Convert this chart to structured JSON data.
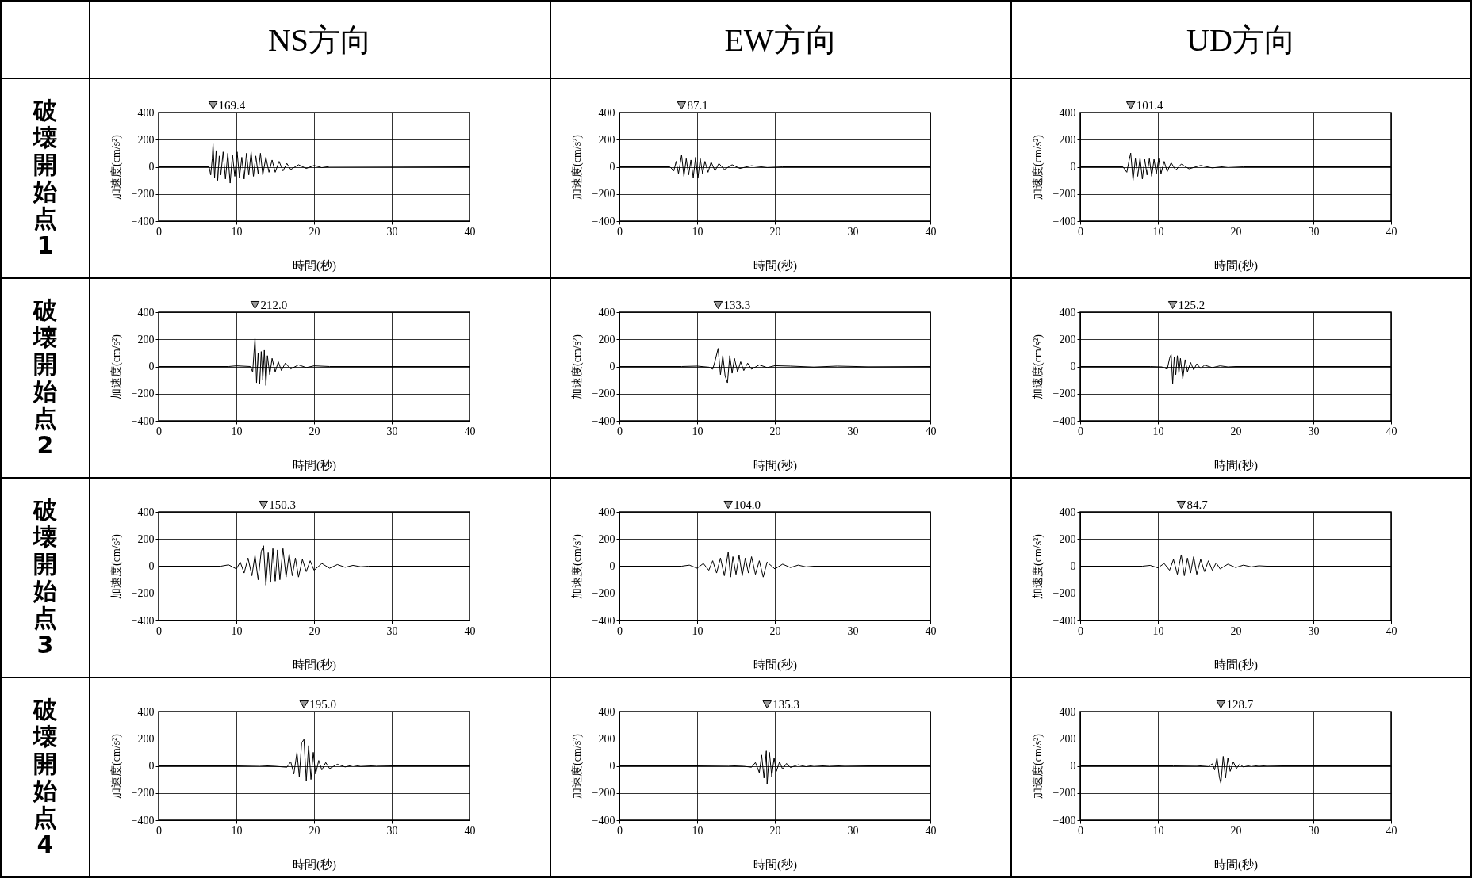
{
  "chart_data": [
    {
      "type": "other",
      "title": "NS方向"
    },
    {
      "type": "other",
      "title": "EW方向"
    },
    {
      "type": "other",
      "title": "UD方向"
    },
    {
      "type": "other",
      "title": "破壊開始点1"
    },
    {
      "type": "line",
      "color": "#000000",
      "xlabel": "時間(秒)",
      "ylabel": "加速度(cm/s²)",
      "xlim": [
        0,
        40
      ],
      "ylim": [
        -400,
        400
      ],
      "xticks": [
        0,
        10,
        20,
        30,
        40
      ],
      "yticks": [
        -400,
        -200,
        0,
        200,
        400
      ],
      "grid": true,
      "annotations": [
        "169.4"
      ],
      "x": [
        0,
        6.5,
        6.7,
        6.9,
        7.0,
        7.2,
        7.4,
        7.6,
        7.8,
        8.0,
        8.3,
        8.6,
        8.9,
        9.2,
        9.5,
        9.8,
        10.1,
        10.4,
        10.7,
        11,
        11.3,
        11.6,
        11.9,
        12.2,
        12.5,
        12.8,
        13.1,
        13.4,
        13.8,
        14.2,
        14.6,
        15,
        15.5,
        16,
        16.5,
        17,
        18,
        19,
        20,
        21,
        22,
        40
      ],
      "values": [
        0,
        0,
        -60,
        60,
        169.4,
        -80,
        120,
        -100,
        80,
        -60,
        110,
        -90,
        100,
        -120,
        90,
        -70,
        110,
        -80,
        70,
        -90,
        100,
        -60,
        110,
        -70,
        80,
        -50,
        100,
        -60,
        70,
        -40,
        50,
        -40,
        40,
        -30,
        25,
        -20,
        15,
        -12,
        10,
        -6,
        3,
        0
      ]
    },
    {
      "type": "line",
      "color": "#000000",
      "xlabel": "時間(秒)",
      "ylabel": "加速度(cm/s²)",
      "xlim": [
        0,
        40
      ],
      "ylim": [
        -400,
        400
      ],
      "xticks": [
        0,
        10,
        20,
        30,
        40
      ],
      "yticks": [
        -400,
        -200,
        0,
        200,
        400
      ],
      "grid": true,
      "annotations": [
        "87.1"
      ],
      "x": [
        0,
        6.5,
        7,
        7.3,
        7.6,
        8.0,
        8.3,
        8.6,
        8.9,
        9.2,
        9.5,
        9.8,
        10.1,
        10.4,
        10.7,
        11,
        11.4,
        11.8,
        12.3,
        12.8,
        13.5,
        14.5,
        15.5,
        17,
        19,
        21,
        40
      ],
      "values": [
        0,
        0,
        -30,
        40,
        -50,
        87.1,
        -70,
        60,
        -60,
        50,
        -80,
        70,
        -85,
        60,
        -50,
        40,
        -40,
        35,
        -30,
        25,
        -20,
        15,
        -12,
        8,
        -5,
        0,
        0
      ]
    },
    {
      "type": "line",
      "color": "#000000",
      "xlabel": "時間(秒)",
      "ylabel": "加速度(cm/s²)",
      "xlim": [
        0,
        40
      ],
      "ylim": [
        -400,
        400
      ],
      "xticks": [
        0,
        10,
        20,
        30,
        40
      ],
      "yticks": [
        -400,
        -200,
        0,
        200,
        400
      ],
      "grid": true,
      "annotations": [
        "101.4"
      ],
      "x": [
        0,
        5.5,
        6.0,
        6.3,
        6.5,
        6.8,
        7.1,
        7.4,
        7.7,
        8.0,
        8.3,
        8.6,
        8.9,
        9.2,
        9.5,
        9.8,
        10.1,
        10.4,
        10.8,
        11.2,
        11.7,
        12.3,
        13,
        14,
        15.5,
        17,
        19,
        21,
        40
      ],
      "values": [
        0,
        0,
        -40,
        50,
        101.4,
        -100,
        60,
        -70,
        65,
        -90,
        55,
        -60,
        60,
        -70,
        55,
        -50,
        60,
        -50,
        40,
        -35,
        30,
        -25,
        20,
        -15,
        10,
        -8,
        5,
        0,
        0
      ]
    },
    {
      "type": "other",
      "title": "破壊開始点2"
    },
    {
      "type": "line",
      "color": "#000000",
      "xlabel": "時間(秒)",
      "ylabel": "加速度(cm/s²)",
      "xlim": [
        0,
        40
      ],
      "ylim": [
        -400,
        400
      ],
      "xticks": [
        0,
        10,
        20,
        30,
        40
      ],
      "yticks": [
        -400,
        -200,
        0,
        200,
        400
      ],
      "grid": true,
      "annotations": [
        "212.0"
      ],
      "x": [
        0,
        9,
        10,
        11.8,
        12.1,
        12.4,
        12.6,
        12.8,
        13.0,
        13.2,
        13.4,
        13.6,
        13.8,
        14.0,
        14.3,
        14.6,
        15,
        15.4,
        15.8,
        16.3,
        17,
        18,
        19,
        20,
        22,
        40
      ],
      "values": [
        0,
        0,
        5,
        0,
        -40,
        212,
        -120,
        100,
        -130,
        110,
        -100,
        120,
        -140,
        80,
        -60,
        60,
        -40,
        35,
        -30,
        25,
        -18,
        12,
        -8,
        5,
        0,
        0
      ]
    },
    {
      "type": "line",
      "color": "#000000",
      "xlabel": "時間(秒)",
      "ylabel": "加速度(cm/s²)",
      "xlim": [
        0,
        40
      ],
      "ylim": [
        -400,
        400
      ],
      "xticks": [
        0,
        10,
        20,
        30,
        40
      ],
      "yticks": [
        -400,
        -200,
        0,
        200,
        400
      ],
      "grid": true,
      "annotations": [
        "133.3"
      ],
      "x": [
        0,
        8,
        10,
        11.5,
        12,
        12.3,
        12.7,
        13,
        13.3,
        13.6,
        13.9,
        14.2,
        14.5,
        14.8,
        15.2,
        15.6,
        16,
        16.5,
        17,
        18,
        19,
        20,
        22,
        25,
        28,
        32,
        40
      ],
      "values": [
        0,
        0,
        3,
        -5,
        -20,
        40,
        133.3,
        -60,
        80,
        -70,
        -120,
        80,
        -50,
        60,
        -40,
        35,
        -30,
        25,
        -20,
        12,
        -8,
        6,
        3,
        -4,
        3,
        -2,
        0
      ]
    },
    {
      "type": "line",
      "color": "#000000",
      "xlabel": "時間(秒)",
      "ylabel": "加速度(cm/s²)",
      "xlim": [
        0,
        40
      ],
      "ylim": [
        -400,
        400
      ],
      "xticks": [
        0,
        10,
        20,
        30,
        40
      ],
      "yticks": [
        -400,
        -200,
        0,
        200,
        400
      ],
      "grid": true,
      "annotations": [
        "125.2"
      ],
      "x": [
        0,
        9,
        10.5,
        11.2,
        11.5,
        11.7,
        11.9,
        12.1,
        12.3,
        12.5,
        12.7,
        12.9,
        13.2,
        13.5,
        13.8,
        14.2,
        14.6,
        15,
        15.5,
        16,
        17,
        18,
        19,
        20,
        40
      ],
      "values": [
        0,
        0,
        -3,
        -20,
        60,
        90,
        -125.2,
        70,
        -60,
        80,
        -50,
        60,
        -90,
        50,
        -40,
        30,
        -25,
        20,
        -15,
        10,
        -8,
        5,
        -3,
        0,
        0
      ]
    },
    {
      "type": "other",
      "title": "破壊開始点3"
    },
    {
      "type": "line",
      "color": "#000000",
      "xlabel": "時間(秒)",
      "ylabel": "加速度(cm/s²)",
      "xlim": [
        0,
        40
      ],
      "ylim": [
        -400,
        400
      ],
      "xticks": [
        0,
        10,
        20,
        30,
        40
      ],
      "yticks": [
        -400,
        -200,
        0,
        200,
        400
      ],
      "grid": true,
      "annotations": [
        "150.3"
      ],
      "x": [
        0,
        8,
        9,
        10,
        10.5,
        11,
        11.5,
        12,
        12.4,
        12.8,
        13.2,
        13.5,
        13.8,
        14.1,
        14.4,
        14.7,
        15,
        15.3,
        15.6,
        16,
        16.4,
        16.8,
        17.2,
        17.6,
        18,
        18.5,
        19,
        19.5,
        20,
        21,
        22,
        23,
        24,
        25,
        26,
        27,
        40
      ],
      "values": [
        0,
        0,
        10,
        -20,
        30,
        -50,
        60,
        -70,
        80,
        -100,
        110,
        150.3,
        -140,
        100,
        -120,
        130,
        -110,
        120,
        -100,
        130,
        -80,
        90,
        -70,
        60,
        -80,
        50,
        -40,
        40,
        -30,
        20,
        -15,
        12,
        -8,
        6,
        -4,
        0,
        0
      ]
    },
    {
      "type": "line",
      "color": "#000000",
      "xlabel": "時間(秒)",
      "ylabel": "加速度(cm/s²)",
      "xlim": [
        0,
        40
      ],
      "ylim": [
        -400,
        400
      ],
      "xticks": [
        0,
        10,
        20,
        30,
        40
      ],
      "yticks": [
        -400,
        -200,
        0,
        200,
        400
      ],
      "grid": true,
      "annotations": [
        "104.0"
      ],
      "x": [
        0,
        8,
        9,
        10,
        10.8,
        11.5,
        12,
        12.5,
        13,
        13.5,
        14,
        14.3,
        14.6,
        15,
        15.4,
        15.8,
        16.2,
        16.6,
        17,
        17.5,
        18,
        18.5,
        19,
        20,
        21,
        22,
        23,
        24,
        25,
        40
      ],
      "values": [
        0,
        0,
        8,
        -15,
        20,
        -30,
        40,
        -50,
        60,
        -70,
        104,
        -80,
        70,
        -60,
        80,
        -70,
        60,
        -50,
        70,
        -60,
        40,
        -80,
        30,
        -20,
        15,
        -10,
        8,
        -5,
        0,
        0
      ]
    },
    {
      "type": "line",
      "color": "#000000",
      "xlabel": "時間(秒)",
      "ylabel": "加速度(cm/s²)",
      "xlim": [
        0,
        40
      ],
      "ylim": [
        -400,
        400
      ],
      "xticks": [
        0,
        10,
        20,
        30,
        40
      ],
      "yticks": [
        -400,
        -200,
        0,
        200,
        400
      ],
      "grid": true,
      "annotations": [
        "84.7"
      ],
      "x": [
        0,
        8,
        9,
        10,
        10.8,
        11.5,
        12,
        12.5,
        13,
        13.4,
        13.8,
        14.2,
        14.6,
        15,
        15.5,
        16,
        16.5,
        17,
        17.5,
        18,
        19,
        20,
        21,
        22,
        23,
        24,
        40
      ],
      "values": [
        0,
        0,
        6,
        -12,
        20,
        -30,
        50,
        -60,
        84.7,
        -70,
        60,
        -50,
        70,
        -60,
        50,
        -40,
        40,
        -30,
        25,
        -20,
        15,
        -10,
        8,
        -5,
        3,
        0,
        0
      ]
    },
    {
      "type": "other",
      "title": "破壊開始点4"
    },
    {
      "type": "line",
      "color": "#000000",
      "xlabel": "時間(秒)",
      "ylabel": "加速度(cm/s²)",
      "xlim": [
        0,
        40
      ],
      "ylim": [
        -400,
        400
      ],
      "xticks": [
        0,
        10,
        20,
        30,
        40
      ],
      "yticks": [
        -400,
        -200,
        0,
        200,
        400
      ],
      "grid": true,
      "annotations": [
        "195.0"
      ],
      "x": [
        0,
        10,
        13,
        15,
        16.5,
        17,
        17.4,
        17.8,
        18.1,
        18.4,
        18.7,
        19,
        19.3,
        19.6,
        19.9,
        20.2,
        20.6,
        21,
        21.5,
        22,
        23,
        24,
        25,
        26,
        28,
        30,
        40
      ],
      "values": [
        0,
        0,
        3,
        -3,
        -10,
        30,
        -60,
        100,
        -80,
        170,
        195,
        -110,
        150,
        -100,
        100,
        -60,
        40,
        -30,
        25,
        -20,
        12,
        -8,
        6,
        -4,
        2,
        0,
        0
      ]
    },
    {
      "type": "line",
      "color": "#000000",
      "xlabel": "時間(秒)",
      "ylabel": "加速度(cm/s²)",
      "xlim": [
        0,
        40
      ],
      "ylim": [
        -400,
        400
      ],
      "xticks": [
        0,
        10,
        20,
        30,
        40
      ],
      "yticks": [
        -400,
        -200,
        0,
        200,
        400
      ],
      "grid": true,
      "annotations": [
        "135.3"
      ],
      "x": [
        0,
        10,
        14,
        16,
        17,
        17.5,
        18,
        18.3,
        18.6,
        18.9,
        19.0,
        19.3,
        19.6,
        19.9,
        20.2,
        20.6,
        21,
        21.5,
        22,
        23,
        24,
        25,
        27,
        29,
        32,
        40
      ],
      "values": [
        0,
        0,
        2,
        -3,
        -10,
        25,
        -50,
        80,
        -90,
        110,
        -135.3,
        100,
        -80,
        60,
        -40,
        30,
        -25,
        18,
        -12,
        8,
        -6,
        4,
        -3,
        2,
        0,
        0
      ]
    },
    {
      "type": "line",
      "color": "#000000",
      "xlabel": "時間(秒)",
      "ylabel": "加速度(cm/s²)",
      "xlim": [
        0,
        40
      ],
      "ylim": [
        -400,
        400
      ],
      "xticks": [
        0,
        10,
        20,
        30,
        40
      ],
      "yticks": [
        -400,
        -200,
        0,
        200,
        400
      ],
      "grid": true,
      "annotations": [
        "128.7"
      ],
      "x": [
        0,
        12,
        15,
        16.5,
        17,
        17.3,
        17.6,
        17.9,
        18.1,
        18.4,
        18.7,
        19,
        19.3,
        19.7,
        20.1,
        20.5,
        21,
        22,
        23,
        24,
        26,
        40
      ],
      "values": [
        0,
        0,
        2,
        -5,
        15,
        -30,
        60,
        -80,
        -128.7,
        70,
        -90,
        60,
        -40,
        30,
        -20,
        12,
        -8,
        5,
        -3,
        2,
        0,
        0
      ]
    }
  ]
}
